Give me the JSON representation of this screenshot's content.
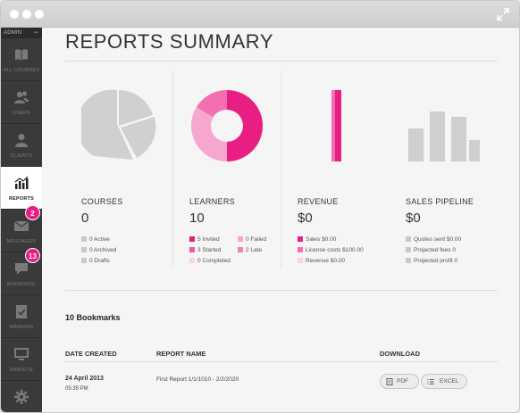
{
  "window": {
    "controls": [
      "close",
      "minimize",
      "maximize"
    ]
  },
  "sidebar": {
    "header_label": "ADMIN",
    "header_toggle": "−",
    "items": [
      {
        "label": "ALL COURSES",
        "icon": "book-icon"
      },
      {
        "label": "USERS",
        "icon": "users-icon"
      },
      {
        "label": "CLIENTS",
        "icon": "client-icon"
      },
      {
        "label": "REPORTS",
        "icon": "bar-chart-icon",
        "active": true
      },
      {
        "label": "MESSAGES",
        "icon": "envelope-icon",
        "badge": "2"
      },
      {
        "label": "MODERATE",
        "icon": "chat-bubble-icon",
        "badge": "13"
      },
      {
        "label": "MARKING",
        "icon": "clipboard-check-icon"
      },
      {
        "label": "WEBSITE",
        "icon": "monitor-icon"
      },
      {
        "label": "",
        "icon": "gear-icon"
      }
    ]
  },
  "page": {
    "title": "REPORTS SUMMARY"
  },
  "colors": {
    "accent": "#e81e82",
    "pink_mid": "#f36fb0",
    "pink_light": "#fbc6e2",
    "gray": "#cfcfcf"
  },
  "summary": {
    "courses": {
      "title": "COURSES",
      "value": "0",
      "legend": [
        {
          "label": "0 Active",
          "color": "#c9c9c9"
        },
        {
          "label": "0 Archived",
          "color": "#c9c9c9"
        },
        {
          "label": "0 Drafts",
          "color": "#c9c9c9"
        }
      ]
    },
    "learners": {
      "title": "LEARNERS",
      "value": "10",
      "legend": [
        {
          "label": "5 Invited",
          "color": "#e81e82"
        },
        {
          "label": "0 Failed",
          "color": "#f6a6cf"
        },
        {
          "label": "3 Started",
          "color": "#ef5aa3"
        },
        {
          "label": "2 Late",
          "color": "#f380ba"
        },
        {
          "label": "0 Completed",
          "color": "#fbd2e8"
        }
      ]
    },
    "revenue": {
      "title": "REVENUE",
      "value": "$0",
      "legend": [
        {
          "label": "Sales $0.00",
          "color": "#e81e82"
        },
        {
          "label": "License costs $100.00",
          "color": "#f36fb0"
        },
        {
          "label": "Revenue $0.00",
          "color": "#fbd2e8"
        }
      ]
    },
    "pipeline": {
      "title": "SALES PIPELINE",
      "value": "$0",
      "legend": [
        {
          "label": "Quotes sent $0.00",
          "color": "#c9c9c9"
        },
        {
          "label": "Projected fees 0",
          "color": "#c9c9c9"
        },
        {
          "label": "Projected profit 0",
          "color": "#c9c9c9"
        }
      ]
    }
  },
  "bookmarks": {
    "title": "10 Bookmarks",
    "columns": [
      "DATE CREATED",
      "REPORT NAME",
      "DOWNLOAD"
    ],
    "rows": [
      {
        "date": "24 April 2013",
        "time": "05:35 PM",
        "name": "First Report 1/1/1010 - 2/2/2020",
        "pdf_label": "PDF",
        "excel_label": "EXCEL"
      }
    ]
  }
}
